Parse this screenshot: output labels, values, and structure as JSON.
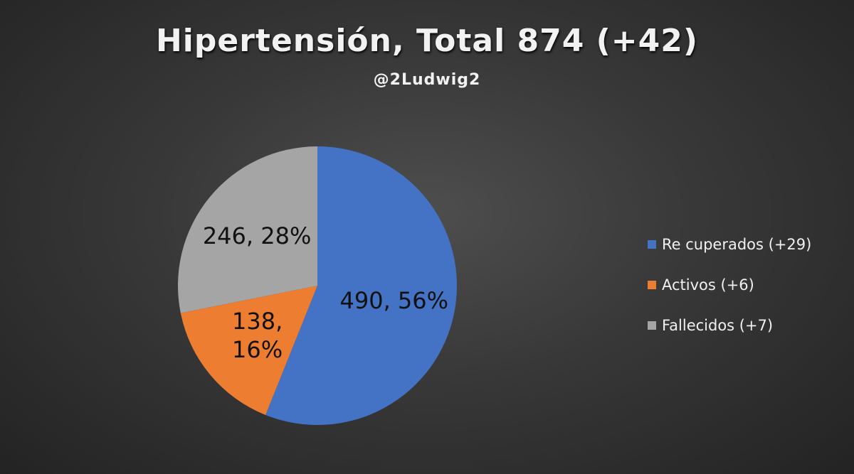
{
  "chart_data": {
    "type": "pie",
    "title": "Hipertensión, Total 874 (+42)",
    "subtitle": "@2Ludwig2",
    "categories": [
      "Re cuperados (+29)",
      "Activos (+6)",
      "Fallecidos (+7)"
    ],
    "values": [
      490,
      138,
      246
    ],
    "value_labels": [
      "490, 56%",
      "138, 16%",
      "246, 28%"
    ],
    "colors": [
      "#4472c4",
      "#ed7d31",
      "#a5a5a5"
    ],
    "legend": "right"
  }
}
